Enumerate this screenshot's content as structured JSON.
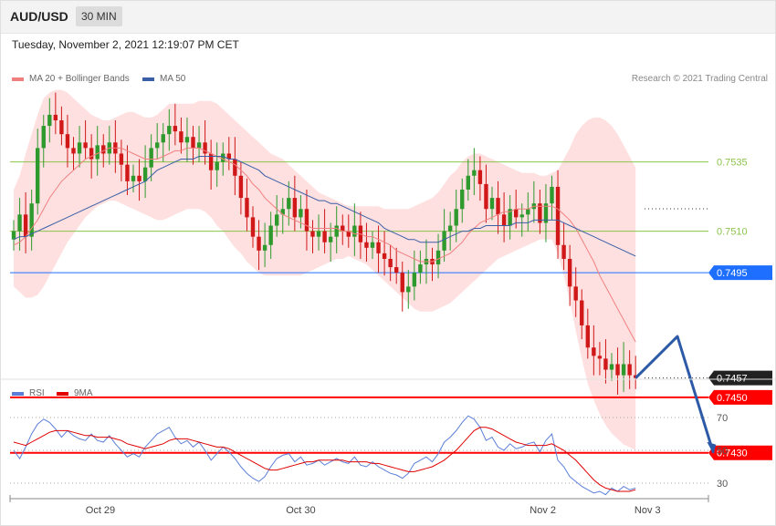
{
  "header": {
    "symbol": "AUD/USD",
    "timeframe": "30 MIN"
  },
  "datetime": "Tuesday, November 2, 2021 12:19:07 PM CET",
  "credit": "Research © 2021 Trading Central",
  "colors": {
    "bollinger": "#ffd6d6",
    "ma20": "#f08080",
    "ma50": "#3a5fa6",
    "up": "#2e9a2e",
    "down": "#d01818",
    "support": "#ff0000",
    "pivot": "#1e6fff",
    "resistance": "#8bc34a",
    "rsi": "#5b7fd8",
    "rsi_ma": "#e00000"
  },
  "chart_data": [
    {
      "type": "candlestick",
      "title": "",
      "legend": [
        {
          "label": "MA 20 + Bollinger Bands",
          "color": "#f08080"
        },
        {
          "label": "MA 50",
          "color": "#3a5fa6"
        }
      ],
      "legend_position": "top-left",
      "ylim": [
        0.7423,
        0.7575
      ],
      "x_ticks": [
        "Oct 29",
        "Oct 30",
        "Nov 2",
        "Nov 3"
      ],
      "levels": [
        {
          "label": "0.7535",
          "value": 0.7535,
          "kind": "resistance"
        },
        {
          "label": "0.7510",
          "value": 0.751,
          "kind": "resistance"
        },
        {
          "label": "0.7495",
          "value": 0.7495,
          "kind": "pivot"
        },
        {
          "label": "0.7457",
          "value": 0.7457,
          "kind": "last"
        },
        {
          "label": "0.7450",
          "value": 0.745,
          "kind": "support"
        },
        {
          "label": "0.7430",
          "value": 0.743,
          "kind": "support"
        }
      ],
      "close": [
        0.751,
        0.7516,
        0.7508,
        0.752,
        0.754,
        0.7548,
        0.7552,
        0.755,
        0.7545,
        0.754,
        0.7538,
        0.7542,
        0.754,
        0.7536,
        0.7541,
        0.7538,
        0.7542,
        0.7538,
        0.7534,
        0.7528,
        0.753,
        0.7528,
        0.7533,
        0.754,
        0.7542,
        0.7545,
        0.7548,
        0.7546,
        0.7542,
        0.7544,
        0.754,
        0.7542,
        0.7538,
        0.7532,
        0.7535,
        0.7538,
        0.7536,
        0.753,
        0.7522,
        0.7515,
        0.7508,
        0.7503,
        0.7505,
        0.7512,
        0.7516,
        0.7518,
        0.7522,
        0.7515,
        0.7518,
        0.751,
        0.7508,
        0.751,
        0.7506,
        0.7508,
        0.7512,
        0.751,
        0.7508,
        0.7512,
        0.7506,
        0.7504,
        0.7506,
        0.7502,
        0.75,
        0.7497,
        0.7495,
        0.7488,
        0.749,
        0.7495,
        0.7498,
        0.75,
        0.7498,
        0.7503,
        0.751,
        0.7512,
        0.7518,
        0.7525,
        0.753,
        0.7532,
        0.7527,
        0.7518,
        0.7522,
        0.7516,
        0.7512,
        0.7518,
        0.7515,
        0.7516,
        0.7518,
        0.752,
        0.7513,
        0.752,
        0.7526,
        0.7505,
        0.75,
        0.749,
        0.7485,
        0.7476,
        0.7468,
        0.7465,
        0.7464,
        0.746,
        0.7462,
        0.7458,
        0.7462,
        0.7458,
        0.7457
      ],
      "ma20": [
        0.7505,
        0.7506,
        0.7508,
        0.7511,
        0.7514,
        0.7518,
        0.7522,
        0.7525,
        0.7528,
        0.753,
        0.7532,
        0.7534,
        0.7536,
        0.7537,
        0.7538,
        0.7539,
        0.754,
        0.754,
        0.754,
        0.7539,
        0.7538,
        0.7537,
        0.7536,
        0.7536,
        0.7536,
        0.7537,
        0.7538,
        0.7539,
        0.7539,
        0.754,
        0.754,
        0.754,
        0.7539,
        0.7538,
        0.7537,
        0.7536,
        0.7535,
        0.7534,
        0.7532,
        0.753,
        0.7527,
        0.7525,
        0.7522,
        0.752,
        0.7518,
        0.7516,
        0.7515,
        0.7514,
        0.7513,
        0.7512,
        0.7511,
        0.7511,
        0.7511,
        0.7511,
        0.7511,
        0.751,
        0.751,
        0.7509,
        0.7509,
        0.7508,
        0.7508,
        0.7507,
        0.7506,
        0.7505,
        0.7503,
        0.7502,
        0.7501,
        0.75,
        0.7499,
        0.7499,
        0.7499,
        0.75,
        0.7501,
        0.7502,
        0.7504,
        0.7506,
        0.7509,
        0.7511,
        0.7513,
        0.7514,
        0.7515,
        0.7516,
        0.7517,
        0.7517,
        0.7518,
        0.7518,
        0.7518,
        0.7519,
        0.7519,
        0.7519,
        0.7519,
        0.7518,
        0.7516,
        0.7514,
        0.7511,
        0.7507,
        0.7503,
        0.7499,
        0.7494,
        0.749,
        0.7486,
        0.7482,
        0.7478,
        0.7474,
        0.747
      ],
      "ma50": [
        0.7507,
        0.7508,
        0.7508,
        0.7509,
        0.751,
        0.7511,
        0.7512,
        0.7513,
        0.7514,
        0.7515,
        0.7516,
        0.7517,
        0.7518,
        0.7519,
        0.752,
        0.7521,
        0.7522,
        0.7523,
        0.7524,
        0.7525,
        0.7526,
        0.7527,
        0.7528,
        0.753,
        0.7532,
        0.7533,
        0.7534,
        0.7535,
        0.7536,
        0.7536,
        0.7536,
        0.7537,
        0.7537,
        0.7537,
        0.7537,
        0.7537,
        0.7536,
        0.7536,
        0.7535,
        0.7534,
        0.7533,
        0.7532,
        0.753,
        0.7529,
        0.7528,
        0.7527,
        0.7526,
        0.7525,
        0.7524,
        0.7523,
        0.7522,
        0.7521,
        0.7521,
        0.752,
        0.752,
        0.7519,
        0.7518,
        0.7517,
        0.7516,
        0.7515,
        0.7514,
        0.7513,
        0.7511,
        0.751,
        0.7509,
        0.7508,
        0.7507,
        0.7507,
        0.7506,
        0.7506,
        0.7506,
        0.7506,
        0.7507,
        0.7508,
        0.7509,
        0.751,
        0.751,
        0.7511,
        0.7511,
        0.7512,
        0.7512,
        0.7512,
        0.7512,
        0.7512,
        0.7513,
        0.7513,
        0.7513,
        0.7514,
        0.7514,
        0.7514,
        0.7514,
        0.7514,
        0.7513,
        0.7512,
        0.7511,
        0.751,
        0.7509,
        0.7508,
        0.7507,
        0.7506,
        0.7505,
        0.7504,
        0.7503,
        0.7502,
        0.7501
      ],
      "bb_upper": [
        0.7525,
        0.753,
        0.7538,
        0.7545,
        0.7552,
        0.7558,
        0.756,
        0.7561,
        0.7561,
        0.756,
        0.7558,
        0.7556,
        0.7554,
        0.7552,
        0.7551,
        0.755,
        0.755,
        0.7551,
        0.7552,
        0.7553,
        0.7553,
        0.7552,
        0.7551,
        0.7551,
        0.7552,
        0.7554,
        0.7556,
        0.7556,
        0.7556,
        0.7556,
        0.7556,
        0.7557,
        0.7557,
        0.7557,
        0.7556,
        0.7554,
        0.7552,
        0.755,
        0.7548,
        0.7546,
        0.7544,
        0.7542,
        0.754,
        0.7538,
        0.7537,
        0.7536,
        0.7534,
        0.7532,
        0.753,
        0.7528,
        0.7526,
        0.7524,
        0.7523,
        0.7522,
        0.7521,
        0.752,
        0.7519,
        0.7519,
        0.7519,
        0.7519,
        0.7519,
        0.7519,
        0.7518,
        0.7518,
        0.7518,
        0.7518,
        0.7518,
        0.7519,
        0.752,
        0.7521,
        0.7522,
        0.7524,
        0.7527,
        0.753,
        0.7532,
        0.7535,
        0.7537,
        0.7538,
        0.7538,
        0.7537,
        0.7536,
        0.7535,
        0.7534,
        0.7533,
        0.7532,
        0.7531,
        0.7531,
        0.7531,
        0.753,
        0.753,
        0.7531,
        0.7532,
        0.7536,
        0.754,
        0.7545,
        0.7548,
        0.755,
        0.7551,
        0.7551,
        0.755,
        0.7548,
        0.7545,
        0.7541,
        0.7537,
        0.7533
      ],
      "bb_lower": [
        0.749,
        0.7488,
        0.7486,
        0.7486,
        0.7487,
        0.749,
        0.7494,
        0.7498,
        0.7502,
        0.7506,
        0.7509,
        0.7512,
        0.7515,
        0.7517,
        0.7519,
        0.752,
        0.7521,
        0.7521,
        0.752,
        0.7519,
        0.7518,
        0.7517,
        0.7516,
        0.7515,
        0.7514,
        0.7514,
        0.7515,
        0.7516,
        0.7517,
        0.7518,
        0.7518,
        0.7518,
        0.7517,
        0.7515,
        0.7512,
        0.751,
        0.7507,
        0.7504,
        0.7502,
        0.7499,
        0.7497,
        0.7495,
        0.7494,
        0.7494,
        0.7494,
        0.7494,
        0.7494,
        0.7494,
        0.7494,
        0.7495,
        0.7496,
        0.7497,
        0.7498,
        0.7499,
        0.75,
        0.75,
        0.7501,
        0.75,
        0.7499,
        0.7498,
        0.7496,
        0.7494,
        0.7492,
        0.749,
        0.7488,
        0.7486,
        0.7484,
        0.7482,
        0.7481,
        0.7481,
        0.7481,
        0.7482,
        0.7483,
        0.7484,
        0.7486,
        0.7488,
        0.749,
        0.7492,
        0.7494,
        0.7496,
        0.7498,
        0.75,
        0.7501,
        0.7502,
        0.7503,
        0.7504,
        0.7505,
        0.7506,
        0.7507,
        0.7507,
        0.7507,
        0.7502,
        0.7494,
        0.7485,
        0.7474,
        0.7464,
        0.7455,
        0.7449,
        0.7444,
        0.744,
        0.7437,
        0.7435,
        0.7433,
        0.7432,
        0.7431
      ],
      "projection": [
        {
          "bar": 104,
          "price": 0.7457
        },
        {
          "bar": 111,
          "price": 0.7472
        },
        {
          "bar": 117,
          "price": 0.743
        }
      ]
    },
    {
      "type": "line",
      "title": "",
      "legend": [
        {
          "label": "RSI",
          "color": "#5b7fd8"
        },
        {
          "label": "9MA",
          "color": "#e00000"
        }
      ],
      "legend_position": "top-left",
      "ylim": [
        20,
        80
      ],
      "y_ticks": [
        70,
        50,
        30
      ],
      "rsi": [
        50,
        45,
        52,
        60,
        66,
        69,
        67,
        63,
        58,
        62,
        59,
        57,
        56,
        60,
        56,
        55,
        59,
        54,
        50,
        46,
        48,
        46,
        52,
        56,
        60,
        62,
        64,
        58,
        54,
        56,
        52,
        55,
        50,
        44,
        48,
        52,
        49,
        45,
        40,
        36,
        33,
        31,
        34,
        40,
        45,
        47,
        48,
        43,
        46,
        41,
        42,
        44,
        41,
        43,
        45,
        43,
        42,
        46,
        41,
        40,
        43,
        40,
        38,
        36,
        35,
        33,
        36,
        42,
        44,
        46,
        43,
        48,
        55,
        58,
        62,
        67,
        71,
        69,
        64,
        56,
        58,
        52,
        50,
        54,
        51,
        52,
        54,
        55,
        49,
        56,
        60,
        44,
        40,
        34,
        31,
        28,
        26,
        24,
        25,
        23,
        27,
        25,
        28,
        26,
        27
      ],
      "rsi_ma": [
        55,
        54,
        53,
        55,
        57,
        59,
        61,
        62,
        62,
        62,
        61,
        60,
        59,
        59,
        58,
        58,
        58,
        57,
        56,
        54,
        53,
        52,
        51,
        52,
        53,
        54,
        56,
        57,
        57,
        57,
        56,
        55,
        54,
        53,
        52,
        52,
        51,
        49,
        47,
        45,
        43,
        41,
        39,
        38,
        38,
        39,
        40,
        41,
        42,
        43,
        43,
        44,
        44,
        44,
        44,
        44,
        43,
        43,
        43,
        43,
        42,
        42,
        41,
        40,
        39,
        38,
        37,
        37,
        38,
        39,
        40,
        42,
        44,
        47,
        50,
        54,
        58,
        62,
        64,
        64,
        63,
        61,
        59,
        57,
        55,
        54,
        53,
        53,
        53,
        53,
        54,
        52,
        50,
        47,
        44,
        40,
        36,
        32,
        29,
        27,
        26,
        25,
        25,
        25,
        26
      ]
    }
  ]
}
